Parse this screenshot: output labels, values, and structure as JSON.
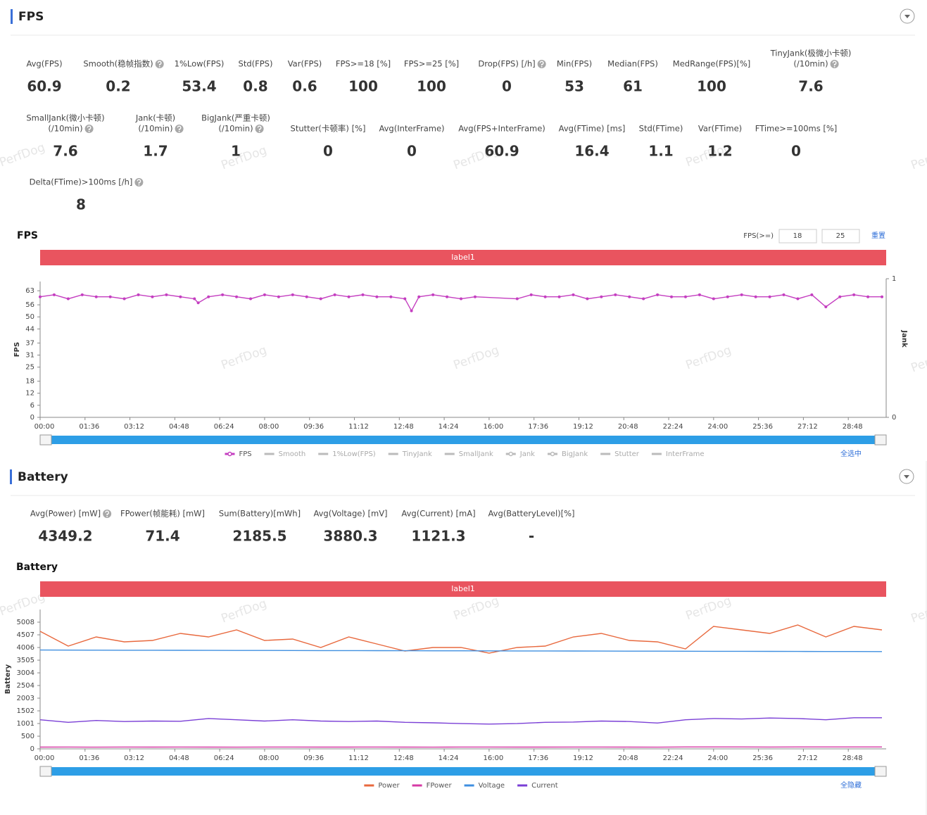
{
  "watermark": "PerfDog",
  "fps_section": {
    "title": "FPS",
    "metrics": [
      {
        "label": "Avg(FPS)",
        "value": 60.9
      },
      {
        "label": "Smooth(稳帧指数)",
        "value": 0.2,
        "help": true
      },
      {
        "label": "1%Low(FPS)",
        "value": 53.4
      },
      {
        "label": "Std(FPS)",
        "value": 0.8
      },
      {
        "label": "Var(FPS)",
        "value": 0.6
      },
      {
        "label": "FPS>=18 [%]",
        "value": 100
      },
      {
        "label": "FPS>=25 [%]",
        "value": 100
      },
      {
        "label": "Drop(FPS) [/h]",
        "value": 0,
        "help": true
      },
      {
        "label": "Min(FPS)",
        "value": 53
      },
      {
        "label": "Median(FPS)",
        "value": 61
      },
      {
        "label": "MedRange(FPS)[%]",
        "value": 100
      },
      {
        "label": [
          "TinyJank(极微小卡顿)",
          "(/10min)"
        ],
        "value": 7.6,
        "help": true
      },
      {
        "label": [
          "SmallJank(微小卡顿)",
          "(/10min)"
        ],
        "value": 7.6,
        "help": true
      },
      {
        "label": [
          "Jank(卡顿)",
          "(/10min)"
        ],
        "value": 1.7,
        "help": true
      },
      {
        "label": [
          "BigJank(严重卡顿)",
          "(/10min)"
        ],
        "value": 1,
        "help": true
      },
      {
        "label": "Stutter(卡顿率) [%]",
        "value": 0
      },
      {
        "label": "Avg(InterFrame)",
        "value": 0
      },
      {
        "label": "Avg(FPS+InterFrame)",
        "value": 60.9
      },
      {
        "label": "Avg(FTime) [ms]",
        "value": 16.4
      },
      {
        "label": "Std(FTime)",
        "value": 1.1
      },
      {
        "label": "Var(FTime)",
        "value": 1.2
      },
      {
        "label": "FTime>=100ms [%]",
        "value": 0
      },
      {
        "label": "Delta(FTime)>100ms [/h]",
        "value": 8,
        "help": true
      }
    ]
  },
  "battery_section": {
    "title": "Battery",
    "metrics": [
      {
        "label": "Avg(Power) [mW]",
        "value": 4349.2,
        "help": true
      },
      {
        "label": "FPower(帧能耗) [mW]",
        "value": 71.4
      },
      {
        "label": "Sum(Battery)[mWh]",
        "value": 2185.5
      },
      {
        "label": "Avg(Voltage) [mV]",
        "value": 3880.3
      },
      {
        "label": "Avg(Current) [mA]",
        "value": 1121.3
      },
      {
        "label": "Avg(BatteryLevel)[%]",
        "value": "-"
      }
    ]
  },
  "chart_data": [
    {
      "type": "line",
      "title": "FPS",
      "band_label": "label1",
      "y_label": "FPS",
      "y2_label": "Jank",
      "threshold_label": "FPS(>=)",
      "thresholds": [
        18,
        25
      ],
      "reset_label": "重置",
      "select_label": "全选中",
      "xlim": [
        0,
        1809
      ],
      "ylim": [
        0,
        67.6
      ],
      "y2lim": [
        0,
        1
      ],
      "y2ticks": [
        0,
        1
      ],
      "yticks": [
        0,
        6,
        12,
        18,
        25,
        31,
        37,
        44,
        50,
        56,
        63
      ],
      "xticks": [
        {
          "value": 0,
          "label": "00:00"
        },
        {
          "value": 96,
          "label": "01:36"
        },
        {
          "value": 192,
          "label": "03:12"
        },
        {
          "value": 288,
          "label": "04:48"
        },
        {
          "value": 384,
          "label": "06:24"
        },
        {
          "value": 480,
          "label": "08:00"
        },
        {
          "value": 576,
          "label": "09:36"
        },
        {
          "value": 672,
          "label": "11:12"
        },
        {
          "value": 768,
          "label": "12:48"
        },
        {
          "value": 864,
          "label": "14:24"
        },
        {
          "value": 960,
          "label": "16:00"
        },
        {
          "value": 1056,
          "label": "17:36"
        },
        {
          "value": 1152,
          "label": "19:12"
        },
        {
          "value": 1248,
          "label": "20:48"
        },
        {
          "value": 1344,
          "label": "22:24"
        },
        {
          "value": 1440,
          "label": "24:00"
        },
        {
          "value": 1536,
          "label": "25:36"
        },
        {
          "value": 1632,
          "label": "27:12"
        },
        {
          "value": 1728,
          "label": "28:48"
        }
      ],
      "x": [
        0,
        30,
        60,
        90,
        120,
        150,
        180,
        210,
        240,
        270,
        300,
        330,
        338,
        360,
        390,
        420,
        450,
        480,
        510,
        540,
        570,
        600,
        630,
        660,
        690,
        720,
        750,
        780,
        794,
        810,
        840,
        870,
        900,
        930,
        1020,
        1050,
        1080,
        1110,
        1140,
        1170,
        1200,
        1230,
        1260,
        1290,
        1320,
        1350,
        1380,
        1410,
        1440,
        1470,
        1500,
        1530,
        1560,
        1590,
        1620,
        1650,
        1680,
        1710,
        1740,
        1770,
        1800
      ],
      "series": [
        {
          "name": "FPS",
          "color": "#c43ec0",
          "markers": true,
          "values": [
            60,
            61,
            59,
            61,
            60,
            60,
            59,
            61,
            60,
            61,
            60,
            59,
            57,
            60,
            61,
            60,
            59,
            61,
            60,
            61,
            60,
            59,
            61,
            60,
            61,
            60,
            60,
            59,
            53,
            60,
            61,
            60,
            59,
            60,
            59,
            61,
            60,
            60,
            61,
            59,
            60,
            61,
            60,
            59,
            61,
            60,
            60,
            61,
            59,
            60,
            61,
            60,
            60,
            61,
            59,
            61,
            55,
            60,
            61,
            60,
            60
          ]
        }
      ],
      "hidden_series": [
        {
          "name": "Smooth",
          "color": "#bbbbbb"
        },
        {
          "name": "1%Low(FPS)",
          "color": "#bbbbbb"
        },
        {
          "name": "TinyJank",
          "color": "#bbbbbb"
        },
        {
          "name": "SmallJank",
          "color": "#bbbbbb"
        },
        {
          "name": "Jank",
          "color": "#bbbbbb",
          "markers": true
        },
        {
          "name": "BigJank",
          "color": "#bbbbbb",
          "markers": true
        },
        {
          "name": "Stutter",
          "color": "#bbbbbb"
        },
        {
          "name": "InterFrame",
          "color": "#bbbbbb"
        }
      ]
    },
    {
      "type": "line",
      "title": "Battery",
      "band_label": "label1",
      "y_label": "Battery",
      "select_label": "全隐藏",
      "xlim": [
        0,
        1809
      ],
      "ylim": [
        0,
        5509
      ],
      "yticks": [
        0,
        500,
        1001,
        1502,
        2003,
        2504,
        3004,
        3505,
        4006,
        4507,
        5008
      ],
      "xticks": [
        {
          "value": 0,
          "label": "00:00"
        },
        {
          "value": 96,
          "label": "01:36"
        },
        {
          "value": 192,
          "label": "03:12"
        },
        {
          "value": 288,
          "label": "04:48"
        },
        {
          "value": 384,
          "label": "06:24"
        },
        {
          "value": 480,
          "label": "08:00"
        },
        {
          "value": 576,
          "label": "09:36"
        },
        {
          "value": 672,
          "label": "11:12"
        },
        {
          "value": 768,
          "label": "12:48"
        },
        {
          "value": 864,
          "label": "14:24"
        },
        {
          "value": 960,
          "label": "16:00"
        },
        {
          "value": 1056,
          "label": "17:36"
        },
        {
          "value": 1152,
          "label": "19:12"
        },
        {
          "value": 1248,
          "label": "20:48"
        },
        {
          "value": 1344,
          "label": "22:24"
        },
        {
          "value": 1440,
          "label": "24:00"
        },
        {
          "value": 1536,
          "label": "25:36"
        },
        {
          "value": 1632,
          "label": "27:12"
        },
        {
          "value": 1728,
          "label": "28:48"
        }
      ],
      "x": [
        0,
        60,
        120,
        180,
        240,
        300,
        360,
        420,
        480,
        540,
        600,
        660,
        720,
        780,
        840,
        900,
        960,
        1020,
        1080,
        1140,
        1200,
        1260,
        1320,
        1380,
        1440,
        1500,
        1560,
        1620,
        1680,
        1740,
        1800
      ],
      "series": [
        {
          "name": "Power",
          "color": "#e8693e",
          "values": [
            4647,
            4062,
            4424,
            4229,
            4285,
            4563,
            4424,
            4702,
            4285,
            4341,
            4006,
            4424,
            4146,
            3868,
            4006,
            4006,
            3784,
            4006,
            4062,
            4424,
            4563,
            4285,
            4229,
            3951,
            4841,
            4702,
            4563,
            4897,
            4424,
            4841,
            4702
          ]
        },
        {
          "name": "FPower",
          "color": "#d63aa5",
          "values": [
            70,
            72,
            68,
            71,
            69,
            73,
            70,
            68,
            72,
            71,
            70,
            69,
            72,
            70,
            68,
            71,
            73,
            70,
            69,
            72,
            71,
            70,
            68,
            74,
            76,
            75,
            73,
            74,
            76,
            75,
            74
          ]
        },
        {
          "name": "Voltage",
          "color": "#3f8fe0",
          "values": [
            3905,
            3903,
            3901,
            3899,
            3897,
            3895,
            3893,
            3891,
            3889,
            3887,
            3885,
            3883,
            3881,
            3879,
            3877,
            3875,
            3873,
            3871,
            3869,
            3867,
            3865,
            3863,
            3861,
            3859,
            3857,
            3855,
            3853,
            3851,
            3849,
            3847,
            3845
          ]
        },
        {
          "name": "Current",
          "color": "#7a3fd6",
          "values": [
            1150,
            1050,
            1120,
            1080,
            1100,
            1090,
            1200,
            1150,
            1100,
            1150,
            1100,
            1080,
            1100,
            1050,
            1030,
            1000,
            980,
            1000,
            1050,
            1060,
            1100,
            1080,
            1020,
            1150,
            1200,
            1180,
            1220,
            1200,
            1150,
            1230,
            1230
          ]
        }
      ]
    }
  ]
}
